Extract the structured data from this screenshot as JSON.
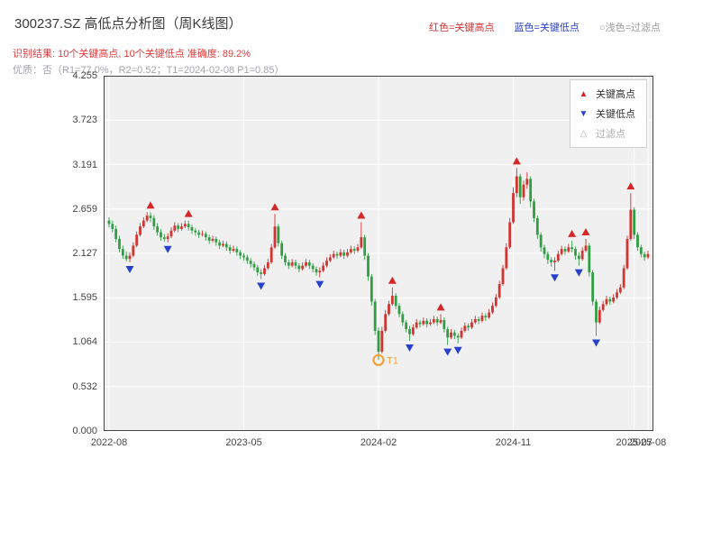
{
  "header": {
    "title": "300237.SZ 高低点分析图（周K线图）",
    "top_legend": {
      "high_label": "红色=关键高点",
      "low_label": "蓝色=关键低点",
      "filter_label": "○浅色=过滤点"
    },
    "result_line": "识别结果: 10个关键高点, 10个关键低点  准确度: 89.2%",
    "quality_line": "优质：否（R1=77.0%，R2=0.52；T1=2024-02-08 P1=0.85）"
  },
  "metrics": {
    "key_high_count": 10,
    "key_low_count": 10,
    "accuracy": "89.2%",
    "quality": "否",
    "R1": "77.0%",
    "R2": "0.52",
    "T1_date": "2024-02-08",
    "P1": "0.85"
  },
  "legend_box": {
    "items": [
      {
        "glyph": "▲",
        "label": "关键高点",
        "marker": "up-triangle-icon",
        "color": "#d62728"
      },
      {
        "glyph": "▼",
        "label": "关键低点",
        "marker": "down-triangle-icon",
        "color": "#2741cc"
      },
      {
        "glyph": "△",
        "label": "过滤点",
        "marker": "hollow-triangle-icon",
        "color": "#b5b5b5"
      }
    ]
  },
  "chart_data": {
    "type": "candlestick",
    "symbol": "300237.SZ",
    "period": "周K线",
    "title": "300237.SZ 高低点分析图（周K线图）",
    "ylim": [
      0,
      4.255
    ],
    "y_ticks": [
      "0.000",
      "0.532",
      "1.064",
      "1.595",
      "2.127",
      "2.659",
      "3.191",
      "3.723",
      "4.255"
    ],
    "x_ticks": [
      {
        "index": 0,
        "label": "2022-08"
      },
      {
        "index": 39,
        "label": "2023-05"
      },
      {
        "index": 78,
        "label": "2024-02"
      },
      {
        "index": 117,
        "label": "2024-11"
      },
      {
        "index": 152,
        "label": "2025-07"
      },
      {
        "index": 156,
        "label": "2025-08"
      }
    ],
    "grid": true,
    "legend_position": "top-right",
    "candles": [
      [
        2.52,
        2.56,
        2.44,
        2.48
      ],
      [
        2.48,
        2.52,
        2.38,
        2.42
      ],
      [
        2.42,
        2.46,
        2.26,
        2.3
      ],
      [
        2.3,
        2.34,
        2.14,
        2.18
      ],
      [
        2.18,
        2.22,
        2.06,
        2.1
      ],
      [
        2.1,
        2.15,
        2.03,
        2.06
      ],
      [
        2.06,
        2.14,
        2.02,
        2.1
      ],
      [
        2.1,
        2.26,
        2.08,
        2.22
      ],
      [
        2.22,
        2.39,
        2.2,
        2.35
      ],
      [
        2.35,
        2.49,
        2.33,
        2.45
      ],
      [
        2.45,
        2.56,
        2.43,
        2.52
      ],
      [
        2.52,
        2.62,
        2.5,
        2.58
      ],
      [
        2.58,
        2.62,
        2.5,
        2.55
      ],
      [
        2.55,
        2.58,
        2.41,
        2.45
      ],
      [
        2.45,
        2.49,
        2.34,
        2.38
      ],
      [
        2.38,
        2.42,
        2.28,
        2.32
      ],
      [
        2.32,
        2.36,
        2.27,
        2.3
      ],
      [
        2.3,
        2.37,
        2.26,
        2.33
      ],
      [
        2.33,
        2.44,
        2.31,
        2.4
      ],
      [
        2.4,
        2.5,
        2.38,
        2.46
      ],
      [
        2.46,
        2.49,
        2.38,
        2.42
      ],
      [
        2.42,
        2.49,
        2.4,
        2.45
      ],
      [
        2.45,
        2.52,
        2.43,
        2.48
      ],
      [
        2.48,
        2.52,
        2.4,
        2.44
      ],
      [
        2.44,
        2.47,
        2.36,
        2.4
      ],
      [
        2.4,
        2.43,
        2.34,
        2.38
      ],
      [
        2.38,
        2.41,
        2.31,
        2.35
      ],
      [
        2.35,
        2.4,
        2.33,
        2.36
      ],
      [
        2.36,
        2.39,
        2.28,
        2.32
      ],
      [
        2.32,
        2.35,
        2.24,
        2.28
      ],
      [
        2.28,
        2.34,
        2.26,
        2.3
      ],
      [
        2.3,
        2.33,
        2.22,
        2.26
      ],
      [
        2.26,
        2.29,
        2.18,
        2.22
      ],
      [
        2.22,
        2.28,
        2.2,
        2.24
      ],
      [
        2.24,
        2.27,
        2.16,
        2.2
      ],
      [
        2.2,
        2.23,
        2.12,
        2.16
      ],
      [
        2.16,
        2.22,
        2.14,
        2.18
      ],
      [
        2.18,
        2.21,
        2.1,
        2.14
      ],
      [
        2.14,
        2.17,
        2.06,
        2.1
      ],
      [
        2.1,
        2.13,
        2.04,
        2.08
      ],
      [
        2.08,
        2.11,
        2.0,
        2.04
      ],
      [
        2.04,
        2.07,
        1.96,
        2.0
      ],
      [
        2.0,
        2.03,
        1.92,
        1.96
      ],
      [
        1.96,
        1.99,
        1.86,
        1.9
      ],
      [
        1.9,
        1.94,
        1.82,
        1.88
      ],
      [
        1.88,
        1.99,
        1.86,
        1.95
      ],
      [
        1.95,
        2.06,
        1.93,
        2.02
      ],
      [
        2.02,
        2.24,
        2.0,
        2.2
      ],
      [
        2.2,
        2.6,
        2.18,
        2.45
      ],
      [
        2.45,
        2.48,
        2.21,
        2.25
      ],
      [
        2.25,
        2.28,
        2.06,
        2.1
      ],
      [
        2.1,
        2.13,
        1.98,
        2.02
      ],
      [
        2.02,
        2.05,
        1.94,
        1.98
      ],
      [
        1.98,
        2.06,
        1.96,
        2.02
      ],
      [
        2.02,
        2.05,
        1.94,
        1.98
      ],
      [
        1.98,
        2.01,
        1.9,
        1.94
      ],
      [
        1.94,
        2.02,
        1.92,
        1.98
      ],
      [
        1.98,
        2.06,
        1.96,
        2.02
      ],
      [
        2.02,
        2.05,
        1.94,
        1.98
      ],
      [
        1.98,
        2.01,
        1.9,
        1.94
      ],
      [
        1.94,
        1.97,
        1.86,
        1.9
      ],
      [
        1.9,
        1.96,
        1.84,
        1.92
      ],
      [
        1.92,
        2.02,
        1.9,
        1.98
      ],
      [
        1.98,
        2.08,
        1.96,
        2.04
      ],
      [
        2.04,
        2.12,
        2.02,
        2.08
      ],
      [
        2.08,
        2.16,
        2.06,
        2.12
      ],
      [
        2.12,
        2.15,
        2.06,
        2.1
      ],
      [
        2.1,
        2.18,
        2.08,
        2.14
      ],
      [
        2.14,
        2.17,
        2.06,
        2.1
      ],
      [
        2.1,
        2.18,
        2.08,
        2.14
      ],
      [
        2.14,
        2.22,
        2.12,
        2.18
      ],
      [
        2.18,
        2.21,
        2.12,
        2.16
      ],
      [
        2.16,
        2.24,
        2.14,
        2.2
      ],
      [
        2.2,
        2.5,
        2.18,
        2.32
      ],
      [
        2.32,
        2.35,
        2.05,
        2.1
      ],
      [
        2.1,
        2.13,
        1.8,
        1.85
      ],
      [
        1.85,
        1.88,
        1.5,
        1.55
      ],
      [
        1.55,
        1.58,
        1.15,
        1.2
      ],
      [
        1.2,
        1.24,
        0.85,
        0.95
      ],
      [
        0.95,
        1.25,
        0.93,
        1.2
      ],
      [
        1.2,
        1.45,
        1.18,
        1.4
      ],
      [
        1.4,
        1.56,
        1.38,
        1.52
      ],
      [
        1.52,
        1.72,
        1.5,
        1.62
      ],
      [
        1.62,
        1.65,
        1.46,
        1.5
      ],
      [
        1.5,
        1.53,
        1.36,
        1.4
      ],
      [
        1.4,
        1.43,
        1.26,
        1.3
      ],
      [
        1.3,
        1.33,
        1.18,
        1.22
      ],
      [
        1.22,
        1.26,
        1.08,
        1.16
      ],
      [
        1.16,
        1.28,
        1.14,
        1.24
      ],
      [
        1.24,
        1.34,
        1.22,
        1.3
      ],
      [
        1.3,
        1.33,
        1.24,
        1.28
      ],
      [
        1.28,
        1.36,
        1.26,
        1.32
      ],
      [
        1.32,
        1.35,
        1.24,
        1.28
      ],
      [
        1.28,
        1.34,
        1.26,
        1.3
      ],
      [
        1.3,
        1.38,
        1.28,
        1.34
      ],
      [
        1.34,
        1.37,
        1.26,
        1.3
      ],
      [
        1.3,
        1.4,
        1.28,
        1.33
      ],
      [
        1.33,
        1.36,
        1.18,
        1.22
      ],
      [
        1.22,
        1.25,
        1.03,
        1.12
      ],
      [
        1.12,
        1.22,
        1.1,
        1.18
      ],
      [
        1.18,
        1.21,
        1.1,
        1.14
      ],
      [
        1.14,
        1.17,
        1.05,
        1.12
      ],
      [
        1.12,
        1.24,
        1.1,
        1.2
      ],
      [
        1.2,
        1.3,
        1.18,
        1.26
      ],
      [
        1.26,
        1.29,
        1.2,
        1.24
      ],
      [
        1.24,
        1.34,
        1.22,
        1.3
      ],
      [
        1.3,
        1.38,
        1.28,
        1.34
      ],
      [
        1.34,
        1.37,
        1.28,
        1.32
      ],
      [
        1.32,
        1.42,
        1.3,
        1.38
      ],
      [
        1.38,
        1.41,
        1.32,
        1.36
      ],
      [
        1.36,
        1.46,
        1.34,
        1.42
      ],
      [
        1.42,
        1.54,
        1.4,
        1.5
      ],
      [
        1.5,
        1.64,
        1.48,
        1.6
      ],
      [
        1.6,
        1.8,
        1.58,
        1.76
      ],
      [
        1.76,
        1.99,
        1.74,
        1.95
      ],
      [
        1.95,
        2.25,
        1.93,
        2.2
      ],
      [
        2.2,
        2.55,
        2.18,
        2.5
      ],
      [
        2.5,
        2.92,
        2.48,
        2.85
      ],
      [
        2.85,
        3.15,
        2.8,
        3.05
      ],
      [
        3.05,
        3.08,
        2.72,
        2.8
      ],
      [
        2.8,
        3.0,
        2.76,
        2.95
      ],
      [
        2.95,
        3.1,
        2.9,
        3.02
      ],
      [
        3.02,
        3.05,
        2.68,
        2.75
      ],
      [
        2.75,
        2.78,
        2.5,
        2.55
      ],
      [
        2.55,
        2.58,
        2.3,
        2.35
      ],
      [
        2.35,
        2.38,
        2.15,
        2.2
      ],
      [
        2.2,
        2.23,
        2.07,
        2.12
      ],
      [
        2.12,
        2.15,
        2.0,
        2.05
      ],
      [
        2.05,
        2.08,
        1.97,
        2.02
      ],
      [
        2.02,
        2.08,
        1.92,
        2.04
      ],
      [
        2.04,
        2.16,
        2.02,
        2.12
      ],
      [
        2.12,
        2.22,
        2.1,
        2.18
      ],
      [
        2.18,
        2.21,
        2.11,
        2.15
      ],
      [
        2.15,
        2.24,
        2.13,
        2.2
      ],
      [
        2.2,
        2.28,
        2.14,
        2.18
      ],
      [
        2.18,
        2.21,
        2.05,
        2.1
      ],
      [
        2.1,
        2.14,
        1.98,
        2.06
      ],
      [
        2.06,
        2.2,
        2.04,
        2.16
      ],
      [
        2.16,
        2.3,
        2.14,
        2.22
      ],
      [
        2.22,
        2.25,
        1.85,
        1.9
      ],
      [
        1.9,
        1.93,
        1.5,
        1.55
      ],
      [
        1.55,
        1.58,
        1.14,
        1.3
      ],
      [
        1.3,
        1.49,
        1.28,
        1.45
      ],
      [
        1.45,
        1.56,
        1.43,
        1.52
      ],
      [
        1.52,
        1.62,
        1.5,
        1.58
      ],
      [
        1.58,
        1.61,
        1.51,
        1.55
      ],
      [
        1.55,
        1.64,
        1.53,
        1.6
      ],
      [
        1.6,
        1.7,
        1.58,
        1.66
      ],
      [
        1.66,
        1.76,
        1.64,
        1.72
      ],
      [
        1.72,
        1.99,
        1.7,
        1.95
      ],
      [
        1.95,
        2.34,
        1.93,
        2.3
      ],
      [
        2.3,
        2.85,
        2.28,
        2.65
      ],
      [
        2.65,
        2.68,
        2.3,
        2.35
      ],
      [
        2.35,
        2.38,
        2.16,
        2.2
      ],
      [
        2.2,
        2.23,
        2.08,
        2.12
      ],
      [
        2.12,
        2.15,
        2.04,
        2.08
      ],
      [
        2.08,
        2.16,
        2.06,
        2.12
      ]
    ],
    "key_high_indices": [
      12,
      23,
      48,
      73,
      82,
      96,
      118,
      134,
      138,
      151
    ],
    "key_low_indices": [
      6,
      17,
      44,
      61,
      87,
      98,
      101,
      129,
      136,
      141
    ],
    "t1_marker": {
      "index": 78,
      "price": 0.85,
      "label": "T1",
      "color": "#f2a13c"
    },
    "colors": {
      "up": "#cf3531",
      "down": "#2f9e44",
      "key_high": "#d62728",
      "key_low": "#2741cc",
      "plot_bg": "#f0f0f0",
      "grid": "#ffffff",
      "spine": "#444444",
      "t1": "#f2a13c"
    }
  }
}
